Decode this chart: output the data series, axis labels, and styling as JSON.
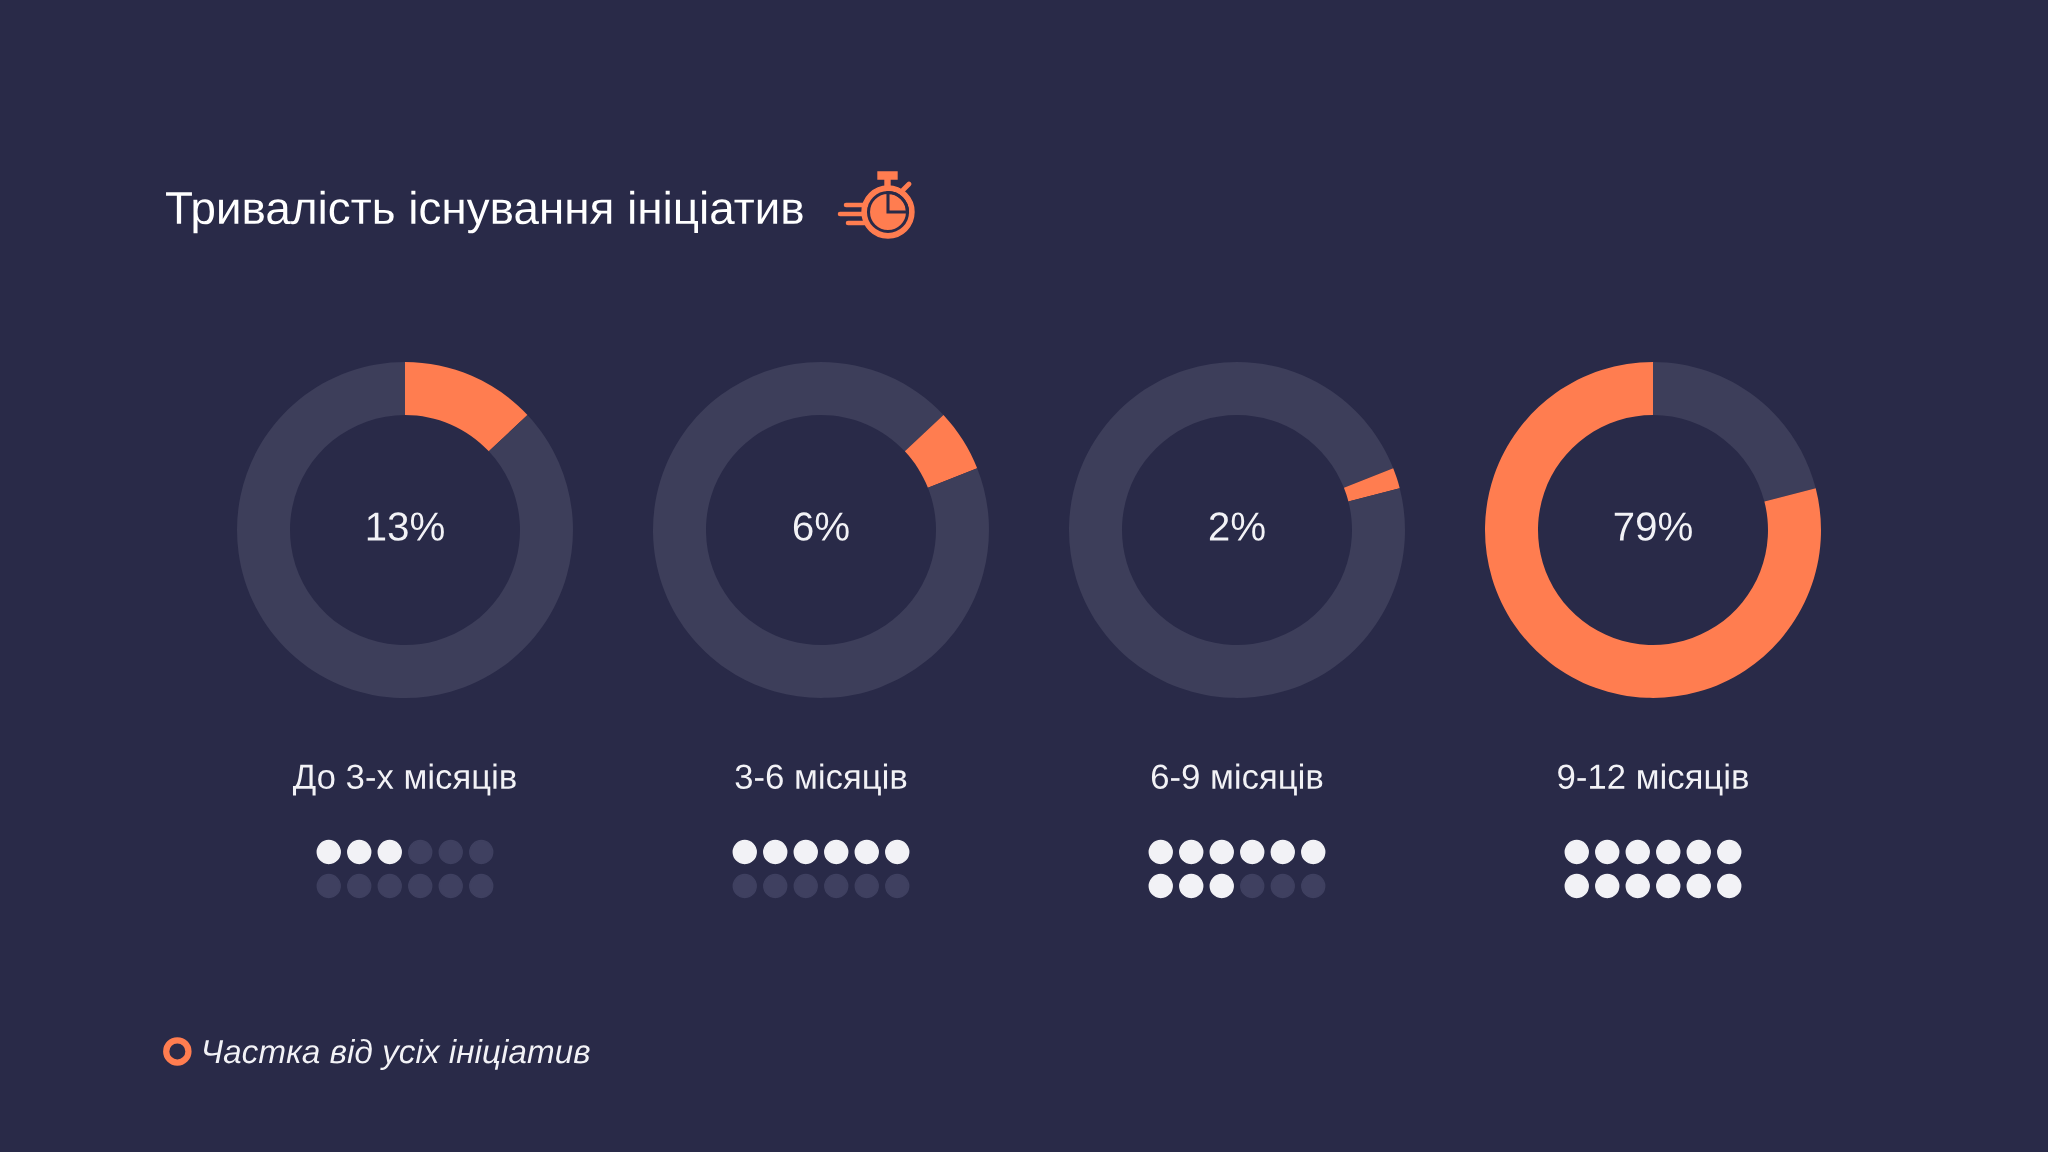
{
  "chart_data": [
    {
      "type": "donut",
      "title": "Тривалість існування ініціатив",
      "xlabel": "До 3-х місяців",
      "categories": [
        "Частка від усіх ініціатив",
        null
      ],
      "values": [
        13,
        87
      ],
      "colors": [
        "#ff7d50",
        "#3d3e5a"
      ],
      "annotations": [
        "13%"
      ],
      "legend": "bottom left"
    },
    {
      "type": "donut",
      "xlabel": "3-6 місяців",
      "categories": [
        null,
        null,
        null
      ],
      "values": [
        13,
        6,
        81
      ],
      "colors": [
        "#3d3e5a",
        "#ff7d50",
        "#3d3e5a"
      ],
      "annotations": [
        "6%"
      ]
    },
    {
      "type": "donut",
      "xlabel": "6-9 місяців",
      "categories": [
        null,
        null,
        null
      ],
      "values": [
        19,
        2,
        79
      ],
      "colors": [
        "#3d3e5a",
        "#ff7d50",
        "#3d3e5a"
      ],
      "annotations": [
        "2%"
      ]
    },
    {
      "type": "donut",
      "xlabel": "9-12 місяців",
      "categories": [
        null,
        null
      ],
      "values": [
        21,
        79
      ],
      "colors": [
        "#3d3e5a",
        "#ff7d50"
      ],
      "annotations": [
        "79%"
      ]
    }
  ]
}
